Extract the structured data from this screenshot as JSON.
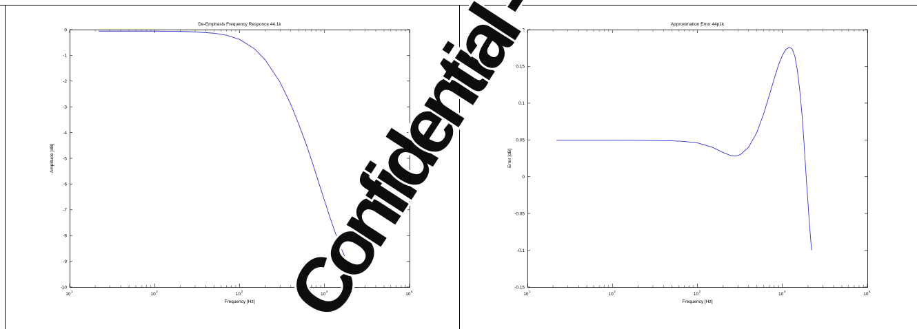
{
  "colors": {
    "line": "#3333cc",
    "watermark": "#ff3b3b"
  },
  "watermark": {
    "text": "Confidential -We"
  },
  "chart_data": [
    {
      "type": "line",
      "title": "De-Emphasis Frequency Responce 44.1k",
      "xlabel": "Frequency [Hz]",
      "ylabel": "Amplitude [dB]",
      "xscale": "log",
      "xlim": [
        10,
        100000
      ],
      "ylim": [
        -10,
        0
      ],
      "xticks": [
        {
          "v": 10,
          "base": "10",
          "exp": "1"
        },
        {
          "v": 100,
          "base": "10",
          "exp": "2"
        },
        {
          "v": 1000,
          "base": "10",
          "exp": "3"
        },
        {
          "v": 10000,
          "base": "10",
          "exp": "4"
        },
        {
          "v": 100000,
          "base": "10",
          "exp": "5"
        }
      ],
      "yticks": [
        {
          "v": 0,
          "label": "0"
        },
        {
          "v": -1,
          "label": "-1"
        },
        {
          "v": -2,
          "label": "-2"
        },
        {
          "v": -3,
          "label": "-3"
        },
        {
          "v": -4,
          "label": "-4"
        },
        {
          "v": -5,
          "label": "-5"
        },
        {
          "v": -6,
          "label": "-6"
        },
        {
          "v": -7,
          "label": "-7"
        },
        {
          "v": -8,
          "label": "-8"
        },
        {
          "v": -9,
          "label": "-9"
        },
        {
          "v": -10,
          "label": "-10"
        }
      ],
      "grid": false,
      "series": [
        {
          "x": [
            22,
            50,
            100,
            200,
            300,
            500,
            700,
            1000,
            1500,
            2000,
            3000,
            4000,
            5000,
            6000,
            7000,
            8000,
            10000,
            12000,
            15000,
            18000,
            20000,
            22050
          ],
          "y": [
            -0.06,
            -0.06,
            -0.06,
            -0.07,
            -0.09,
            -0.14,
            -0.22,
            -0.38,
            -0.75,
            -1.17,
            -2.05,
            -2.9,
            -3.7,
            -4.4,
            -5.05,
            -5.65,
            -6.65,
            -7.45,
            -8.35,
            -8.95,
            -9.3,
            -9.55
          ]
        }
      ]
    },
    {
      "type": "line",
      "title": "Approximation Error 44p1k",
      "xlabel": "Frequency [Hz]",
      "ylabel": "Error [dB]",
      "xscale": "log",
      "xlim": [
        10,
        100000
      ],
      "ylim": [
        -0.15,
        0.2
      ],
      "xticks": [
        {
          "v": 10,
          "base": "10",
          "exp": "1"
        },
        {
          "v": 100,
          "base": "10",
          "exp": "2"
        },
        {
          "v": 1000,
          "base": "10",
          "exp": "3"
        },
        {
          "v": 10000,
          "base": "10",
          "exp": "4"
        },
        {
          "v": 100000,
          "base": "10",
          "exp": "5"
        }
      ],
      "yticks": [
        {
          "v": 0.2,
          "label": "0.2"
        },
        {
          "v": 0.15,
          "label": "0.15"
        },
        {
          "v": 0.1,
          "label": "0.1"
        },
        {
          "v": 0.05,
          "label": "0.05"
        },
        {
          "v": 0,
          "label": "0"
        },
        {
          "v": -0.05,
          "label": "-0.05"
        },
        {
          "v": -0.1,
          "label": "-0.1"
        },
        {
          "v": -0.15,
          "label": "-0.15"
        }
      ],
      "grid": false,
      "series": [
        {
          "x": [
            22,
            50,
            100,
            200,
            300,
            500,
            700,
            1000,
            1500,
            2000,
            2500,
            2800,
            3200,
            4000,
            5000,
            6000,
            7000,
            8000,
            9000,
            10000,
            11000,
            12000,
            13000,
            14000,
            15000,
            16000,
            17000,
            18000,
            19000,
            20000,
            21000,
            22050
          ],
          "y": [
            0.0495,
            0.0495,
            0.0495,
            0.0494,
            0.0492,
            0.0488,
            0.048,
            0.046,
            0.04,
            0.033,
            0.0285,
            0.028,
            0.03,
            0.04,
            0.06,
            0.085,
            0.11,
            0.133,
            0.152,
            0.165,
            0.173,
            0.176,
            0.174,
            0.164,
            0.145,
            0.118,
            0.085,
            0.045,
            0.002,
            -0.035,
            -0.07,
            -0.1
          ]
        }
      ]
    }
  ]
}
